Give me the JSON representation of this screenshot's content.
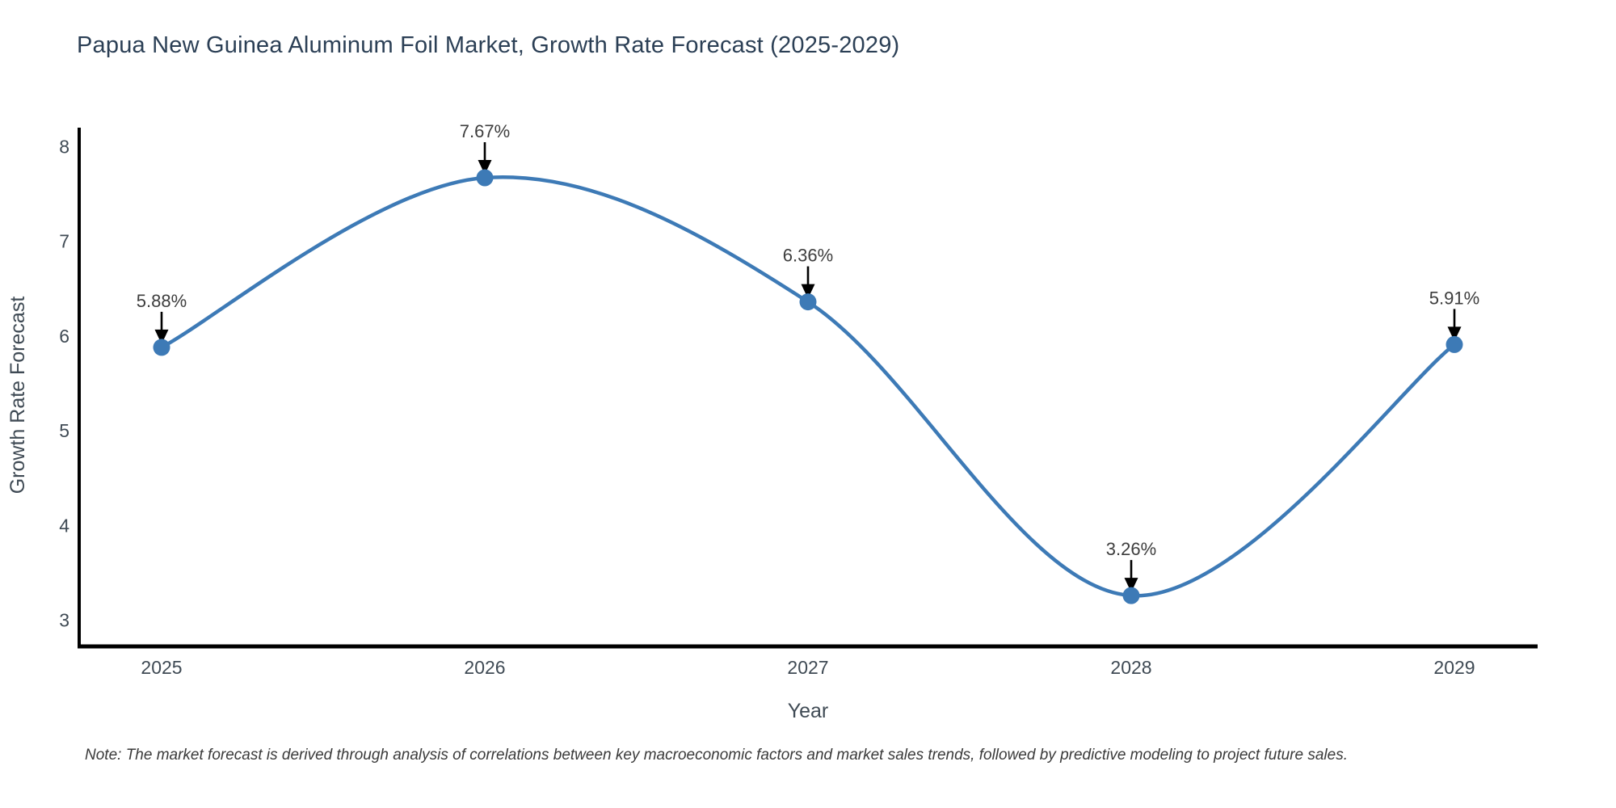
{
  "chart_data": {
    "type": "line",
    "line_shape": "spline",
    "title": "Papua New Guinea Aluminum Foil Market, Growth Rate Forecast (2025-2029)",
    "categories": [
      "2025",
      "2026",
      "2027",
      "2028",
      "2029"
    ],
    "values": [
      5.88,
      7.67,
      6.36,
      3.26,
      5.91
    ],
    "point_labels": [
      "5.88%",
      "7.67%",
      "6.36%",
      "3.26%",
      "5.91%"
    ],
    "xlabel": "Year",
    "ylabel": "Growth Rate Forecast",
    "ylim": [
      3,
      8
    ],
    "yticks": [
      8,
      7,
      6,
      5,
      4,
      3
    ],
    "grid": false,
    "legend": "none",
    "note": "Note: The market forecast is derived through analysis of correlations between key macroeconomic factors and market sales trends, followed by predictive modeling to project future sales.",
    "colors": {
      "line": "#3d7ab6",
      "marker": "#3d7ab6",
      "axis": "#000000",
      "arrow": "#000000",
      "title_text": "#2b3f55",
      "axis_title_text": "#3f4a54",
      "tick_text": "#3f4a54",
      "annotation_text": "#3d3d3d",
      "background": "#ffffff"
    }
  }
}
